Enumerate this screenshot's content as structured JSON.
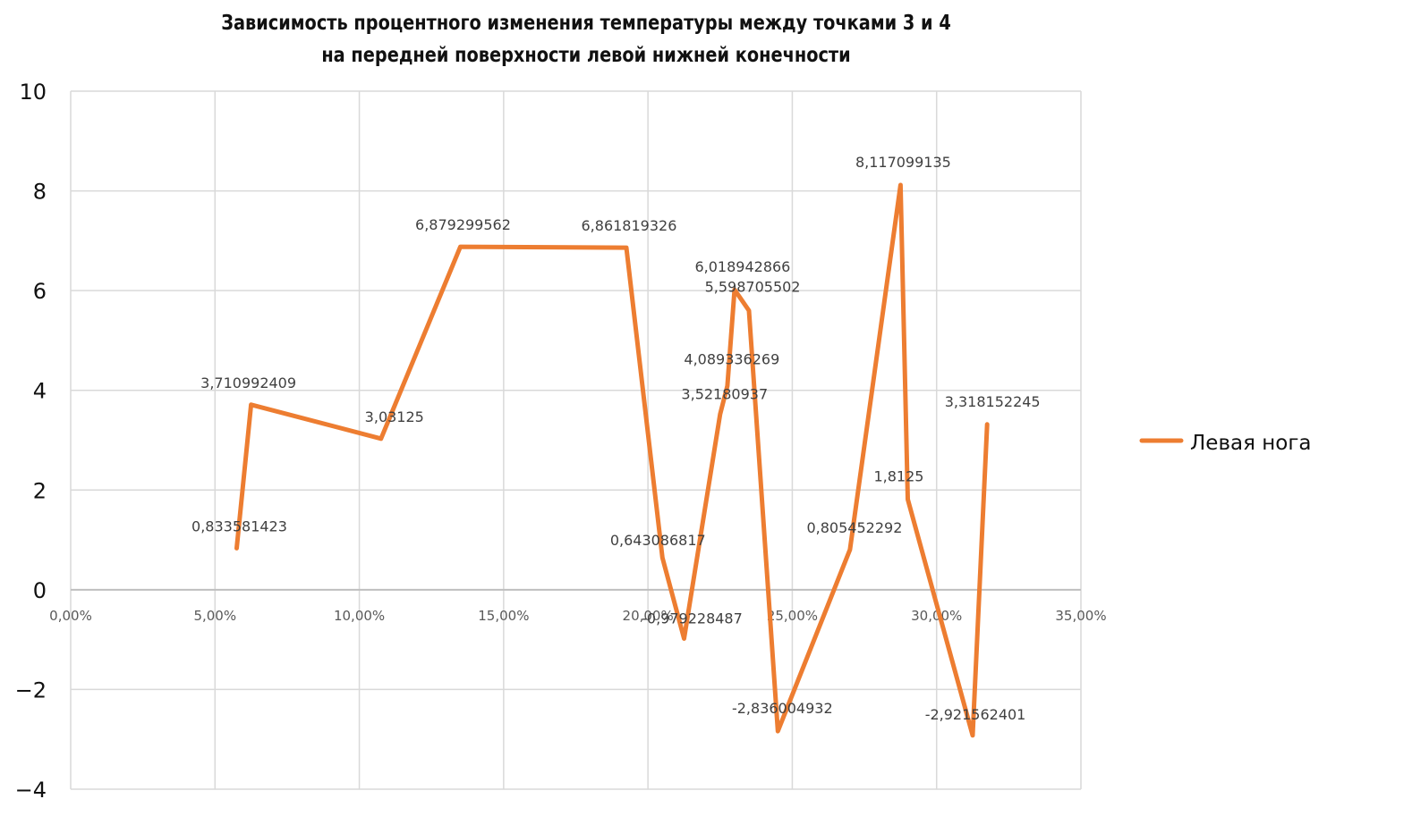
{
  "chart_data": {
    "type": "line",
    "title_lines": [
      "Зависимость процентного изменения температуры между точками 3 и 4",
      "на передней поверхности левой нижней конечности"
    ],
    "xlim": [
      0,
      0.35
    ],
    "ylim": [
      -4,
      10
    ],
    "x_ticks": [
      0,
      0.05,
      0.1,
      0.15,
      0.2,
      0.25,
      0.3,
      0.35
    ],
    "x_tick_labels": [
      "0,00%",
      "5,00%",
      "10,00%",
      "15,00%",
      "20,00%",
      "25,00%",
      "30,00%",
      "35,00%"
    ],
    "y_ticks": [
      -4,
      -2,
      0,
      2,
      4,
      6,
      8,
      10
    ],
    "y_tick_labels": [
      "−4",
      "−2",
      "0",
      "2",
      "4",
      "6",
      "8",
      "10"
    ],
    "grid": true,
    "legend_position": "right",
    "series": [
      {
        "name": "Левая нога",
        "color": "#ED7D31",
        "points": [
          {
            "x": 0.0575,
            "y": 0.833581423,
            "label": "0,833581423"
          },
          {
            "x": 0.0625,
            "y": 3.710992409,
            "label": "3,710992409"
          },
          {
            "x": 0.1075,
            "y": 3.03125,
            "label": "3,03125"
          },
          {
            "x": 0.135,
            "y": 6.879299562,
            "label": "6,879299562"
          },
          {
            "x": 0.1925,
            "y": 6.861819326,
            "label": "6,861819326"
          },
          {
            "x": 0.205,
            "y": 0.643086817,
            "label": "0,643086817"
          },
          {
            "x": 0.2125,
            "y": -0.979228487,
            "label": "-0,979228487"
          },
          {
            "x": 0.225,
            "y": 3.52180937,
            "label": "3,52180937"
          },
          {
            "x": 0.2275,
            "y": 4.089336269,
            "label": "4,089336269"
          },
          {
            "x": 0.23,
            "y": 6.018942866,
            "label": "6,018942866"
          },
          {
            "x": 0.235,
            "y": 5.598705502,
            "label": "5,598705502"
          },
          {
            "x": 0.245,
            "y": -2.836004932,
            "label": "-2,836004932"
          },
          {
            "x": 0.27,
            "y": 0.805452292,
            "label": "0,805452292"
          },
          {
            "x": 0.2875,
            "y": 8.117099135,
            "label": "8,117099135"
          },
          {
            "x": 0.29,
            "y": 1.8125,
            "label": "1,8125"
          },
          {
            "x": 0.3125,
            "y": -2.921562401,
            "label": "-2,921562401"
          },
          {
            "x": 0.3175,
            "y": 3.318152245,
            "label": "3,318152245"
          }
        ]
      }
    ]
  }
}
